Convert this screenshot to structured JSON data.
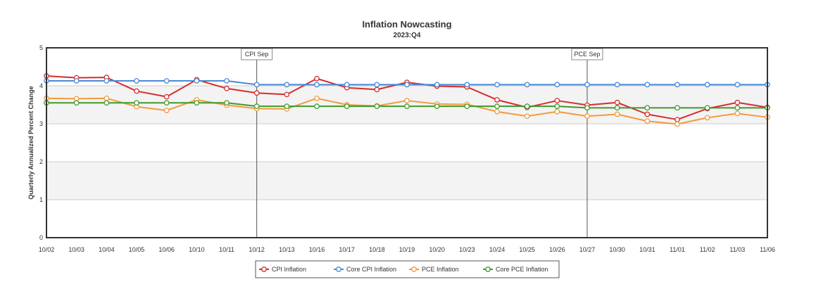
{
  "chart_data": {
    "type": "line",
    "title": "Inflation Nowcasting",
    "subtitle": "2023:Q4",
    "xlabel": "",
    "ylabel": "Quarterly Annualized Percent Change",
    "ylim": [
      0,
      5
    ],
    "yticks": [
      "0",
      "1",
      "2",
      "3",
      "4",
      "5"
    ],
    "grid": "alternating horizontal bands",
    "legend_position": "bottom-center",
    "categories": [
      "10/02",
      "10/03",
      "10/04",
      "10/05",
      "10/06",
      "10/10",
      "10/11",
      "10/12",
      "10/13",
      "10/16",
      "10/17",
      "10/18",
      "10/19",
      "10/20",
      "10/23",
      "10/24",
      "10/25",
      "10/26",
      "10/27",
      "10/30",
      "10/31",
      "11/01",
      "11/02",
      "11/03",
      "11/06"
    ],
    "annotations": [
      {
        "label": "CPI Sep",
        "x": "10/12"
      },
      {
        "label": "PCE Sep",
        "x": "10/27"
      }
    ],
    "series": [
      {
        "name": "CPI Inflation",
        "color": "#d62d2d",
        "values": [
          4.26,
          4.21,
          4.22,
          3.86,
          3.71,
          4.16,
          3.93,
          3.81,
          3.77,
          4.19,
          3.95,
          3.9,
          4.09,
          3.99,
          3.97,
          3.63,
          3.43,
          3.61,
          3.49,
          3.56,
          3.25,
          3.11,
          3.4,
          3.56,
          3.43
        ]
      },
      {
        "name": "Core CPI Inflation",
        "color": "#4a8ad6",
        "values": [
          4.13,
          4.13,
          4.13,
          4.13,
          4.13,
          4.13,
          4.13,
          4.03,
          4.03,
          4.03,
          4.03,
          4.03,
          4.03,
          4.03,
          4.03,
          4.03,
          4.03,
          4.03,
          4.03,
          4.03,
          4.03,
          4.03,
          4.03,
          4.03,
          4.03
        ]
      },
      {
        "name": "PCE Inflation",
        "color": "#f39a3c",
        "values": [
          3.67,
          3.66,
          3.67,
          3.45,
          3.35,
          3.63,
          3.49,
          3.4,
          3.39,
          3.67,
          3.5,
          3.47,
          3.61,
          3.52,
          3.51,
          3.32,
          3.2,
          3.32,
          3.2,
          3.25,
          3.07,
          2.99,
          3.16,
          3.27,
          3.17
        ]
      },
      {
        "name": "Core PCE Inflation",
        "color": "#3f9a2a",
        "values": [
          3.55,
          3.55,
          3.55,
          3.55,
          3.55,
          3.55,
          3.55,
          3.46,
          3.46,
          3.46,
          3.46,
          3.46,
          3.46,
          3.46,
          3.46,
          3.46,
          3.46,
          3.46,
          3.42,
          3.42,
          3.42,
          3.42,
          3.42,
          3.42,
          3.42
        ]
      }
    ]
  }
}
